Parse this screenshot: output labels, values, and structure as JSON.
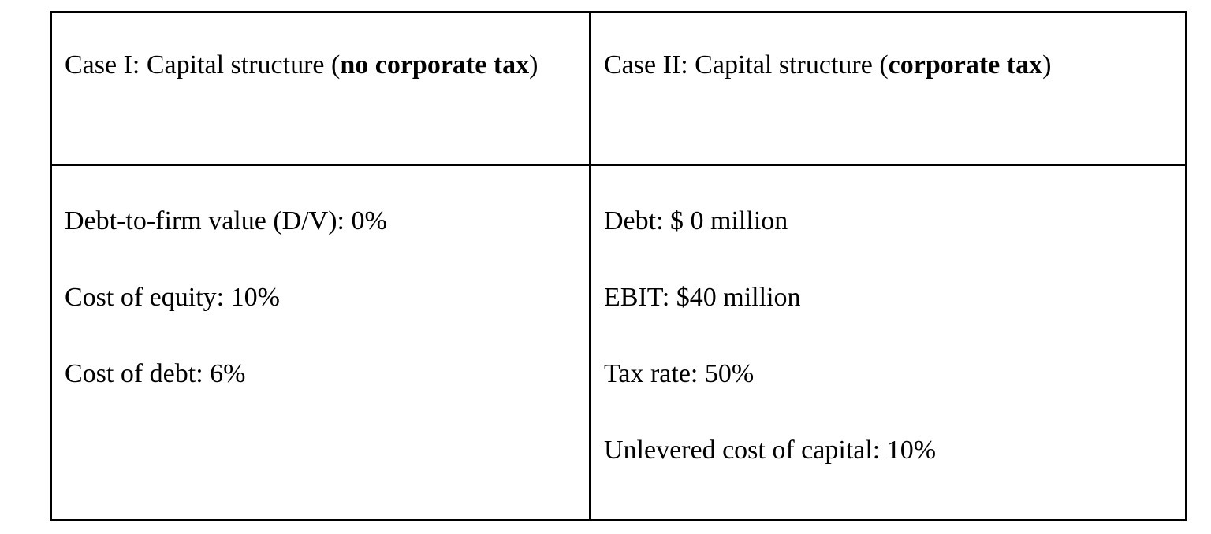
{
  "table": {
    "header": {
      "case1": {
        "prefix": "Case I: Capital structure (",
        "bold": "no corporate tax",
        "suffix": ")"
      },
      "case2": {
        "prefix": "Case II: Capital structure (",
        "bold": "corporate tax",
        "suffix": ")"
      }
    },
    "case1_items": [
      "Debt-to-firm value (D/V): 0%",
      "Cost of equity: 10%",
      "Cost of debt: 6%"
    ],
    "case2_items": [
      "Debt: $ 0 million",
      "EBIT: $40 million",
      "Tax rate: 50%",
      "Unlevered cost of capital: 10%"
    ],
    "colors": {
      "border": "#000000",
      "text": "#000000",
      "background": "#ffffff"
    }
  }
}
